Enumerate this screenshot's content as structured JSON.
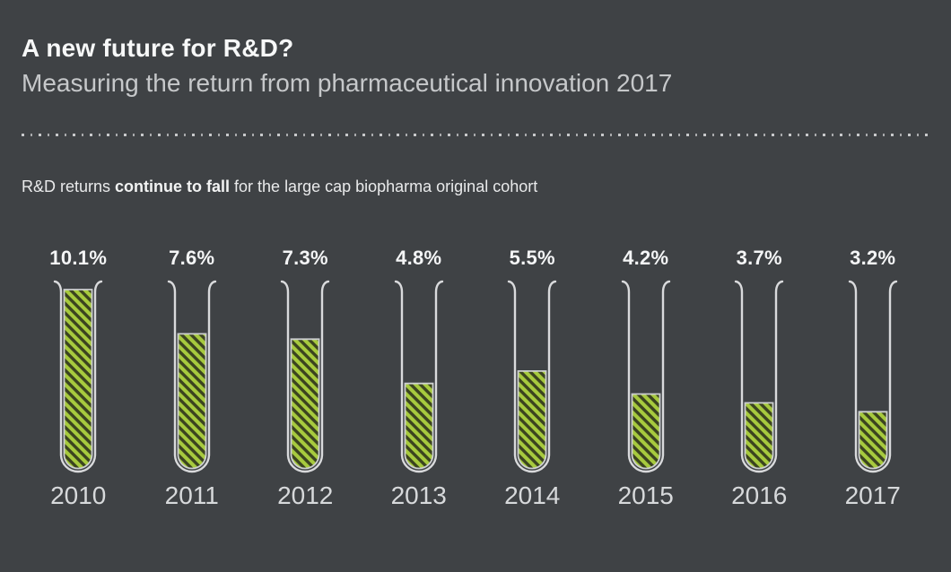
{
  "header": {
    "title": "A new future for R&D?",
    "subtitle": "Measuring the return from pharmaceutical innovation 2017"
  },
  "caption": {
    "prefix": "R&D returns ",
    "bold": "continue to fall",
    "suffix": " for the large cap biopharma original cohort"
  },
  "chart_data": {
    "type": "bar",
    "variant": "test-tube-pictogram",
    "title": "R&D returns continue to fall for the large cap biopharma original cohort",
    "categories": [
      "2010",
      "2011",
      "2012",
      "2013",
      "2014",
      "2015",
      "2016",
      "2017"
    ],
    "values": [
      10.1,
      7.6,
      7.3,
      4.8,
      5.5,
      4.2,
      3.7,
      3.2
    ],
    "value_labels": [
      "10.1%",
      "7.6%",
      "7.3%",
      "4.8%",
      "5.5%",
      "4.2%",
      "3.7%",
      "3.2%"
    ],
    "unit": "%",
    "xlabel": "",
    "ylabel": "",
    "ylim": [
      0,
      10.1
    ],
    "grid": false,
    "legend": "none",
    "colors": {
      "background": "#3f4245",
      "stripe_green": "#a7ca3e",
      "stripe_dark": "#3b431f",
      "glass_outline": "#d9dadc",
      "fill_border": "#ccced0",
      "title_text": "#f7f8f8",
      "subtitle_text": "#c6c8ca",
      "year_text": "#d7d9db"
    }
  }
}
